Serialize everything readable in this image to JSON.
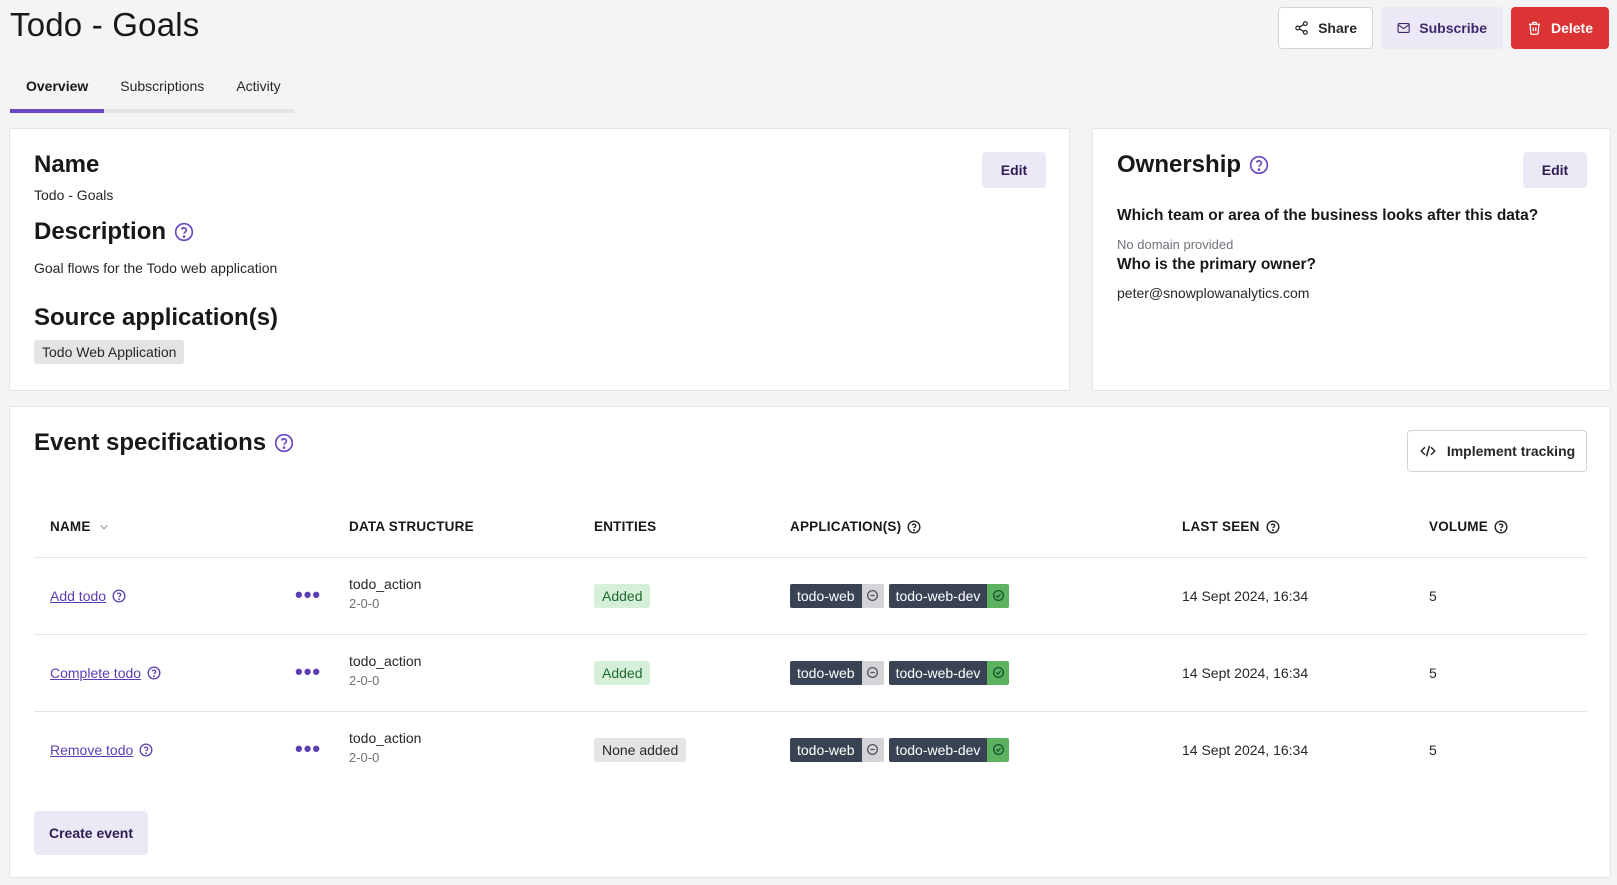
{
  "header": {
    "title": "Todo - Goals",
    "share_label": "Share",
    "subscribe_label": "Subscribe",
    "delete_label": "Delete"
  },
  "tabs": [
    {
      "label": "Overview",
      "active": true
    },
    {
      "label": "Subscriptions",
      "active": false
    },
    {
      "label": "Activity",
      "active": false
    }
  ],
  "details": {
    "name_heading": "Name",
    "name_value": "Todo - Goals",
    "edit_label": "Edit",
    "description_heading": "Description",
    "description_value": "Goal flows for the Todo web application",
    "source_heading": "Source application(s)",
    "source_apps": [
      "Todo Web Application"
    ]
  },
  "ownership": {
    "heading": "Ownership",
    "edit_label": "Edit",
    "team_question": "Which team or area of the business looks after this data?",
    "team_value": "No domain provided",
    "owner_question": "Who is the primary owner?",
    "owner_value": "peter@snowplowanalytics.com"
  },
  "events": {
    "heading": "Event specifications",
    "implement_label": "Implement tracking",
    "columns": {
      "name": "NAME",
      "data_structure": "DATA STRUCTURE",
      "entities": "ENTITIES",
      "applications": "APPLICATION(S)",
      "last_seen": "LAST SEEN",
      "volume": "VOLUME"
    },
    "rows": [
      {
        "name": "Add todo",
        "structure": "todo_action",
        "version": "2-0-0",
        "entities": "Added",
        "apps": [
          {
            "name": "todo-web",
            "status": "inactive"
          },
          {
            "name": "todo-web-dev",
            "status": "active"
          }
        ],
        "last_seen": "14 Sept 2024, 16:34",
        "volume": "5"
      },
      {
        "name": "Complete todo",
        "structure": "todo_action",
        "version": "2-0-0",
        "entities": "Added",
        "apps": [
          {
            "name": "todo-web",
            "status": "inactive"
          },
          {
            "name": "todo-web-dev",
            "status": "active"
          }
        ],
        "last_seen": "14 Sept 2024, 16:34",
        "volume": "5"
      },
      {
        "name": "Remove todo",
        "structure": "todo_action",
        "version": "2-0-0",
        "entities": "None added",
        "apps": [
          {
            "name": "todo-web",
            "status": "inactive"
          },
          {
            "name": "todo-web-dev",
            "status": "active"
          }
        ],
        "last_seen": "14 Sept 2024, 16:34",
        "volume": "5"
      }
    ],
    "create_label": "Create event",
    "row_more_icon": "ellipsis-icon"
  },
  "colors": {
    "accent": "#6c47c2",
    "delete": "#dc3434",
    "app_tag": "#3a4354",
    "status_active": "#5cb25e",
    "status_inactive": "#d4d4d8",
    "entities_added_bg": "#d6efd9"
  }
}
